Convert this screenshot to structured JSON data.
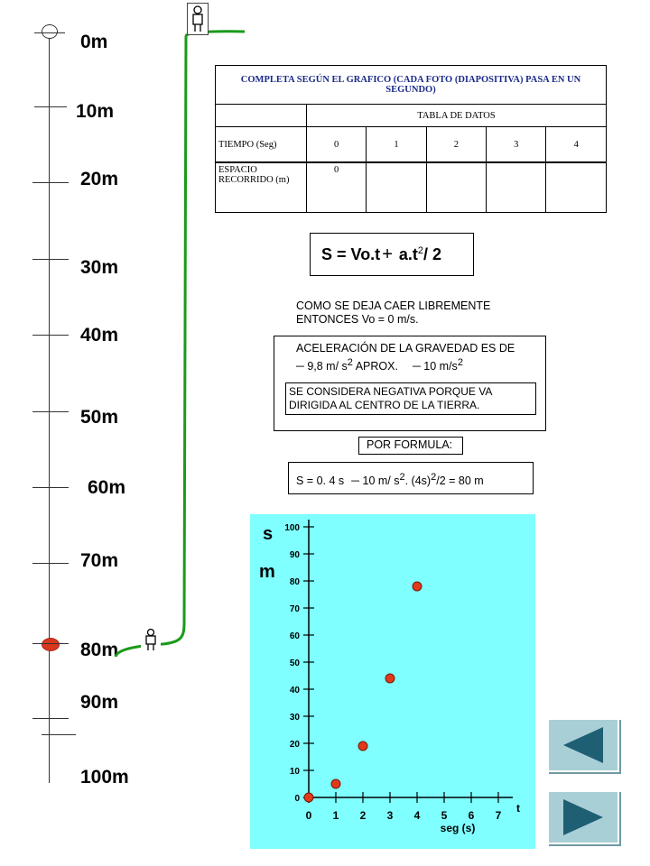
{
  "scale": {
    "labels": [
      "0m",
      "10m",
      "20m",
      "30m",
      "40m",
      "50m",
      "60m",
      "70m",
      "80m",
      "90m",
      "100m"
    ]
  },
  "table": {
    "title": "COMPLETA SEGÚN EL GRAFICO  (CADA FOTO (DIAPOSITIVA) PASA EN UN SEGUNDO)",
    "subheader": "TABLA DE DATOS",
    "time_label": "TIEMPO (Seg)",
    "time_values": [
      "0",
      "1",
      "2",
      "3",
      "4"
    ],
    "space_label": "ESPACIO RECORRIDO (m)",
    "space_values": [
      "0",
      "",
      "",
      "",
      ""
    ]
  },
  "formula": {
    "main_prefix": "S = Vo.t",
    "main_plus": "+",
    "main_a": " a.t",
    "main_exp": "2",
    "main_suffix": "/ 2",
    "free_fall_line1": "COMO SE DEJA CAER LIBREMENTE",
    "free_fall_line2": "ENTONCES Vo = 0 m/s.",
    "gravity_line1": "ACELERACIÓN DE LA GRAVEDAD ES DE",
    "gravity_minus1": "─",
    "gravity_value": " 9,8 m/ s",
    "gravity_exp1": "2",
    "gravity_approx": "  APROX.",
    "gravity_minus2": "─",
    "gravity_value2": " 10 m/s",
    "gravity_exp2": "2",
    "negative_line1": "SE CONSIDERA NEGATIVA PORQUE VA",
    "negative_line2": "DIRIGIDA AL CENTRO DE LA TIERRA.",
    "por_formula": "POR FORMULA:",
    "calc_a": "S =  0. 4 s",
    "calc_minus": "─",
    "calc_b": "  10 m/ s",
    "calc_exp1": "2",
    "calc_c": ". (4s)",
    "calc_exp2": "2",
    "calc_d": "/2 = 80 m"
  },
  "chart_data": {
    "type": "scatter",
    "ylabel_top": "s",
    "ylabel_unit": "m",
    "xlabel": "seg (s)",
    "xlabel_end": "t",
    "ylim": [
      0,
      100
    ],
    "xlim": [
      0,
      7
    ],
    "y_ticks": [
      "0",
      "10",
      "20",
      "30",
      "40",
      "50",
      "60",
      "70",
      "80",
      "90",
      "100"
    ],
    "x_ticks": [
      "0",
      "1",
      "2",
      "3",
      "4",
      "5",
      "6",
      "7"
    ],
    "points": [
      {
        "x": 0,
        "y": 0
      },
      {
        "x": 1,
        "y": 5
      },
      {
        "x": 2,
        "y": 19
      },
      {
        "x": 3,
        "y": 44
      },
      {
        "x": 4,
        "y": 78
      }
    ],
    "point_color": "#e03a1a",
    "background": "#7fffff"
  },
  "nav": {
    "back_icon": "triangle-left-icon",
    "next_icon": "triangle-right-icon"
  }
}
